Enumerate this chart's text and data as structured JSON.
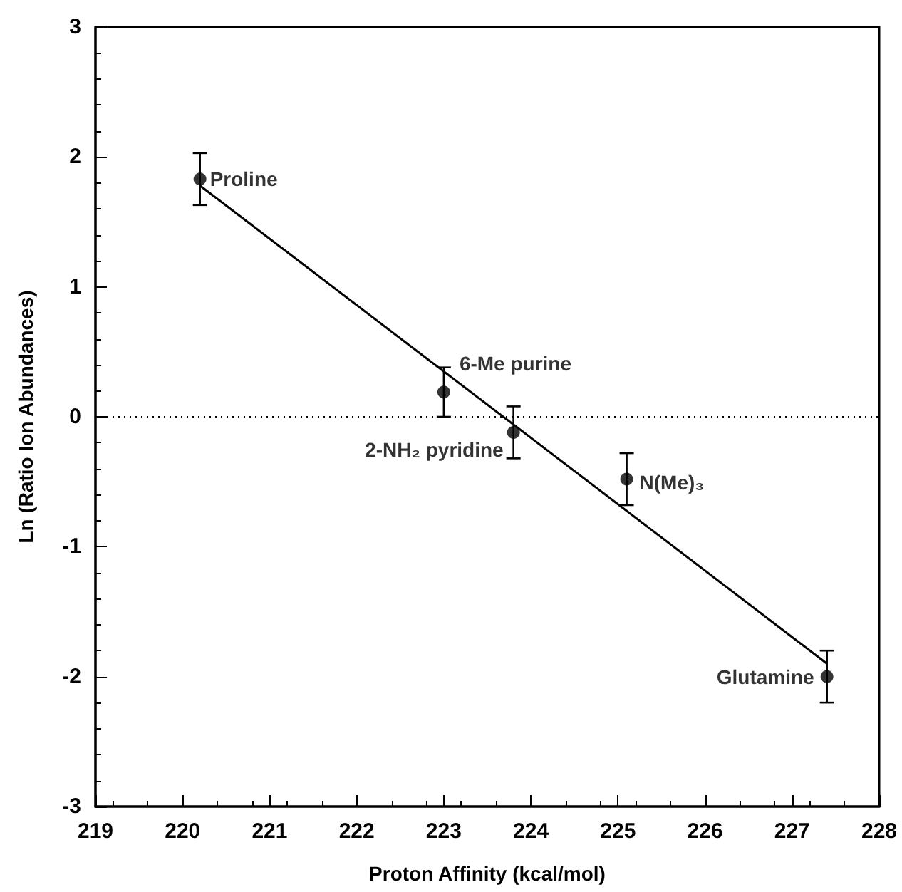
{
  "chart_data": {
    "type": "scatter",
    "xlabel": "Proton Affinity (kcal/mol)",
    "ylabel": "Ln (Ratio Ion Abundances)",
    "xlim": [
      219,
      228
    ],
    "xticks": [
      219,
      220,
      221,
      222,
      223,
      224,
      225,
      226,
      227,
      228
    ],
    "ylim": [
      -3,
      3
    ],
    "yticks": [
      -3,
      -2,
      -1,
      0,
      1,
      2,
      3
    ],
    "grid": false,
    "marker": "circle",
    "series": [
      {
        "color": "#000000",
        "x": [
          220.2,
          223.0,
          223.8,
          225.1,
          227.4
        ],
        "values": [
          1.83,
          0.19,
          -0.12,
          -0.48,
          -2.0
        ],
        "errors": [
          0.2,
          0.19,
          0.2,
          0.2,
          0.2
        ]
      },
      {
        "type": "line",
        "color": "#000000",
        "x": [
          220.2,
          227.4
        ],
        "values": [
          1.78,
          -1.9
        ],
        "marker": "none",
        "line_style": "solid"
      }
    ],
    "ref_lines": [
      {
        "axis": "y",
        "value": 0,
        "line_style": "dotted",
        "color": "#000000"
      }
    ],
    "annotations": [
      {
        "text": "Proline",
        "x": 220.2,
        "y": 1.83
      },
      {
        "text": "6-Me purine",
        "x": 223.0,
        "y": 0.19
      },
      {
        "text": "2-NH₂ pyridine",
        "x": 223.8,
        "y": -0.12
      },
      {
        "text": "N(Me)₃",
        "x": 225.1,
        "y": -0.48
      },
      {
        "text": "Glutamine",
        "x": 227.4,
        "y": -2.0
      }
    ]
  }
}
